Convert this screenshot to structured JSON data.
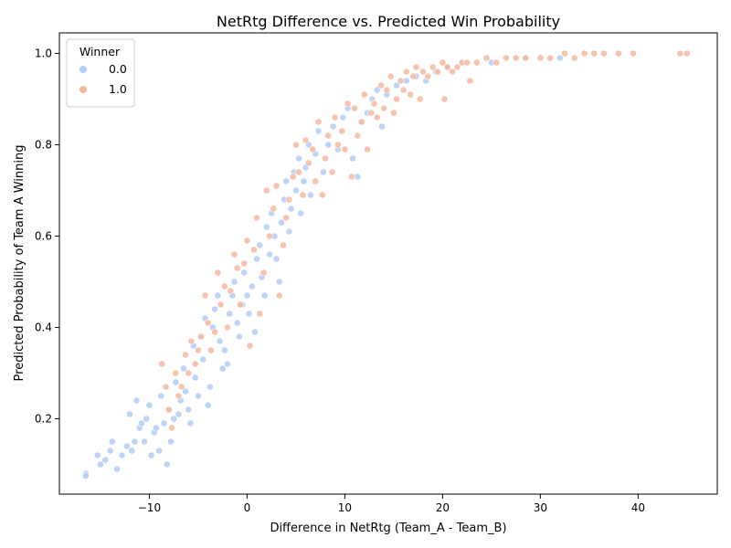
{
  "chart_data": {
    "type": "scatter",
    "title": "NetRtg Difference vs. Predicted Win Probability",
    "xlabel": "Difference in NetRtg (Team_A - Team_B)",
    "ylabel": "Predicted Probability of Team A Winning",
    "xlim": [
      -19.2,
      48.1
    ],
    "ylim": [
      0.035,
      1.045
    ],
    "xticks": [
      -10,
      0,
      10,
      20,
      30,
      40
    ],
    "xtick_labels": [
      "−10",
      "0",
      "10",
      "20",
      "30",
      "40"
    ],
    "yticks": [
      0.2,
      0.4,
      0.6,
      0.8,
      1.0
    ],
    "ytick_labels": [
      "0.2",
      "0.4",
      "0.6",
      "0.8",
      "1.0"
    ],
    "grid": false,
    "legend": {
      "title": "Winner",
      "position": "top-left",
      "entries": [
        {
          "label": "0.0",
          "color": "#b2ccf7"
        },
        {
          "label": "1.0",
          "color": "#f6b9a0"
        }
      ]
    },
    "series": [
      {
        "name": "0.0",
        "color": "#b2ccf7",
        "points": [
          [
            -16.5,
            0.08
          ],
          [
            -16.5,
            0.075
          ],
          [
            -15.3,
            0.12
          ],
          [
            -15.0,
            0.1
          ],
          [
            -14.5,
            0.11
          ],
          [
            -14.0,
            0.13
          ],
          [
            -13.8,
            0.15
          ],
          [
            -13.3,
            0.09
          ],
          [
            -12.8,
            0.12
          ],
          [
            -12.3,
            0.14
          ],
          [
            -12.0,
            0.21
          ],
          [
            -11.8,
            0.13
          ],
          [
            -11.5,
            0.15
          ],
          [
            -11.3,
            0.24
          ],
          [
            -11.0,
            0.18
          ],
          [
            -10.8,
            0.19
          ],
          [
            -10.5,
            0.15
          ],
          [
            -10.3,
            0.2
          ],
          [
            -10.0,
            0.23
          ],
          [
            -9.8,
            0.12
          ],
          [
            -9.5,
            0.17
          ],
          [
            -9.3,
            0.18
          ],
          [
            -9.0,
            0.13
          ],
          [
            -8.8,
            0.25
          ],
          [
            -8.5,
            0.19
          ],
          [
            -8.2,
            0.1
          ],
          [
            -8.0,
            0.22
          ],
          [
            -7.8,
            0.15
          ],
          [
            -7.5,
            0.2
          ],
          [
            -7.3,
            0.28
          ],
          [
            -7.0,
            0.21
          ],
          [
            -6.8,
            0.24
          ],
          [
            -6.5,
            0.31
          ],
          [
            -6.3,
            0.26
          ],
          [
            -6.0,
            0.22
          ],
          [
            -5.8,
            0.19
          ],
          [
            -5.5,
            0.36
          ],
          [
            -5.3,
            0.29
          ],
          [
            -5.0,
            0.25
          ],
          [
            -4.8,
            0.38
          ],
          [
            -4.5,
            0.33
          ],
          [
            -4.3,
            0.42
          ],
          [
            -4.0,
            0.23
          ],
          [
            -3.8,
            0.27
          ],
          [
            -3.5,
            0.4
          ],
          [
            -3.3,
            0.44
          ],
          [
            -3.0,
            0.47
          ],
          [
            -2.8,
            0.37
          ],
          [
            -2.5,
            0.31
          ],
          [
            -2.3,
            0.35
          ],
          [
            -2.0,
            0.32
          ],
          [
            -1.8,
            0.43
          ],
          [
            -1.5,
            0.47
          ],
          [
            -1.3,
            0.5
          ],
          [
            -1.0,
            0.41
          ],
          [
            -0.8,
            0.38
          ],
          [
            -0.5,
            0.45
          ],
          [
            -0.3,
            0.52
          ],
          [
            0.0,
            0.47
          ],
          [
            0.2,
            0.43
          ],
          [
            0.5,
            0.49
          ],
          [
            0.8,
            0.39
          ],
          [
            1.0,
            0.55
          ],
          [
            1.3,
            0.58
          ],
          [
            1.5,
            0.51
          ],
          [
            1.8,
            0.47
          ],
          [
            2.0,
            0.62
          ],
          [
            2.3,
            0.56
          ],
          [
            2.5,
            0.65
          ],
          [
            2.8,
            0.6
          ],
          [
            3.0,
            0.55
          ],
          [
            3.3,
            0.5
          ],
          [
            3.5,
            0.63
          ],
          [
            3.8,
            0.68
          ],
          [
            4.0,
            0.72
          ],
          [
            4.3,
            0.61
          ],
          [
            4.5,
            0.66
          ],
          [
            4.8,
            0.74
          ],
          [
            5.0,
            0.7
          ],
          [
            5.3,
            0.77
          ],
          [
            5.5,
            0.65
          ],
          [
            5.8,
            0.72
          ],
          [
            6.0,
            0.75
          ],
          [
            6.3,
            0.8
          ],
          [
            6.5,
            0.69
          ],
          [
            7.0,
            0.78
          ],
          [
            7.3,
            0.83
          ],
          [
            7.8,
            0.74
          ],
          [
            8.3,
            0.8
          ],
          [
            8.8,
            0.84
          ],
          [
            9.3,
            0.79
          ],
          [
            9.8,
            0.86
          ],
          [
            10.3,
            0.88
          ],
          [
            10.8,
            0.77
          ],
          [
            11.3,
            0.73
          ],
          [
            11.8,
            0.85
          ],
          [
            12.3,
            0.87
          ],
          [
            12.8,
            0.9
          ],
          [
            13.3,
            0.92
          ],
          [
            13.8,
            0.84
          ],
          [
            14.3,
            0.91
          ],
          [
            15.3,
            0.93
          ],
          [
            16.3,
            0.94
          ],
          [
            17.3,
            0.95
          ],
          [
            18.3,
            0.94
          ],
          [
            19.3,
            0.96
          ],
          [
            20.5,
            0.97
          ],
          [
            22.0,
            0.98
          ],
          [
            25.0,
            0.98
          ],
          [
            28.5,
            0.99
          ],
          [
            32.0,
            0.99
          ]
        ]
      },
      {
        "name": "1.0",
        "color": "#f6b9a0",
        "points": [
          [
            -8.7,
            0.32
          ],
          [
            -8.3,
            0.27
          ],
          [
            -8.0,
            0.22
          ],
          [
            -7.7,
            0.18
          ],
          [
            -7.3,
            0.3
          ],
          [
            -7.0,
            0.25
          ],
          [
            -6.7,
            0.27
          ],
          [
            -6.3,
            0.34
          ],
          [
            -6.0,
            0.3
          ],
          [
            -5.7,
            0.37
          ],
          [
            -5.3,
            0.32
          ],
          [
            -5.0,
            0.35
          ],
          [
            -4.7,
            0.38
          ],
          [
            -4.3,
            0.47
          ],
          [
            -4.0,
            0.41
          ],
          [
            -3.7,
            0.35
          ],
          [
            -3.3,
            0.39
          ],
          [
            -3.0,
            0.52
          ],
          [
            -2.7,
            0.45
          ],
          [
            -2.3,
            0.49
          ],
          [
            -2.0,
            0.4
          ],
          [
            -1.7,
            0.48
          ],
          [
            -1.3,
            0.56
          ],
          [
            -1.0,
            0.53
          ],
          [
            -0.7,
            0.45
          ],
          [
            -0.3,
            0.54
          ],
          [
            0.0,
            0.59
          ],
          [
            0.3,
            0.36
          ],
          [
            0.7,
            0.57
          ],
          [
            1.0,
            0.64
          ],
          [
            1.3,
            0.43
          ],
          [
            1.7,
            0.52
          ],
          [
            2.0,
            0.7
          ],
          [
            2.3,
            0.6
          ],
          [
            2.7,
            0.66
          ],
          [
            3.0,
            0.71
          ],
          [
            3.3,
            0.47
          ],
          [
            3.7,
            0.58
          ],
          [
            4.0,
            0.64
          ],
          [
            4.3,
            0.68
          ],
          [
            4.7,
            0.73
          ],
          [
            5.0,
            0.8
          ],
          [
            5.3,
            0.74
          ],
          [
            5.7,
            0.69
          ],
          [
            6.0,
            0.81
          ],
          [
            6.3,
            0.76
          ],
          [
            6.7,
            0.79
          ],
          [
            7.0,
            0.72
          ],
          [
            7.3,
            0.85
          ],
          [
            7.7,
            0.69
          ],
          [
            8.0,
            0.77
          ],
          [
            8.3,
            0.82
          ],
          [
            8.7,
            0.74
          ],
          [
            9.0,
            0.86
          ],
          [
            9.3,
            0.8
          ],
          [
            9.7,
            0.83
          ],
          [
            10.0,
            0.79
          ],
          [
            10.3,
            0.89
          ],
          [
            10.7,
            0.73
          ],
          [
            11.0,
            0.88
          ],
          [
            11.3,
            0.82
          ],
          [
            11.7,
            0.85
          ],
          [
            12.0,
            0.91
          ],
          [
            12.3,
            0.79
          ],
          [
            12.7,
            0.87
          ],
          [
            13.0,
            0.89
          ],
          [
            13.3,
            0.86
          ],
          [
            13.7,
            0.93
          ],
          [
            14.0,
            0.88
          ],
          [
            14.3,
            0.92
          ],
          [
            14.7,
            0.95
          ],
          [
            15.0,
            0.87
          ],
          [
            15.3,
            0.9
          ],
          [
            15.7,
            0.94
          ],
          [
            16.0,
            0.92
          ],
          [
            16.3,
            0.96
          ],
          [
            16.7,
            0.91
          ],
          [
            17.0,
            0.95
          ],
          [
            17.3,
            0.97
          ],
          [
            17.7,
            0.9
          ],
          [
            18.0,
            0.96
          ],
          [
            18.5,
            0.95
          ],
          [
            19.0,
            0.97
          ],
          [
            19.5,
            0.96
          ],
          [
            20.0,
            0.98
          ],
          [
            20.2,
            0.9
          ],
          [
            20.5,
            0.97
          ],
          [
            21.0,
            0.96
          ],
          [
            21.5,
            0.97
          ],
          [
            22.0,
            0.98
          ],
          [
            22.5,
            0.98
          ],
          [
            22.8,
            0.94
          ],
          [
            23.5,
            0.98
          ],
          [
            24.5,
            0.99
          ],
          [
            25.5,
            0.98
          ],
          [
            26.5,
            0.99
          ],
          [
            27.5,
            0.99
          ],
          [
            28.5,
            0.99
          ],
          [
            30.0,
            0.99
          ],
          [
            31.0,
            0.99
          ],
          [
            32.5,
            1.0
          ],
          [
            33.5,
            0.99
          ],
          [
            34.5,
            1.0
          ],
          [
            35.5,
            1.0
          ],
          [
            36.5,
            1.0
          ],
          [
            38.0,
            1.0
          ],
          [
            39.5,
            1.0
          ],
          [
            44.3,
            1.0
          ],
          [
            45.0,
            1.0
          ]
        ]
      }
    ]
  }
}
